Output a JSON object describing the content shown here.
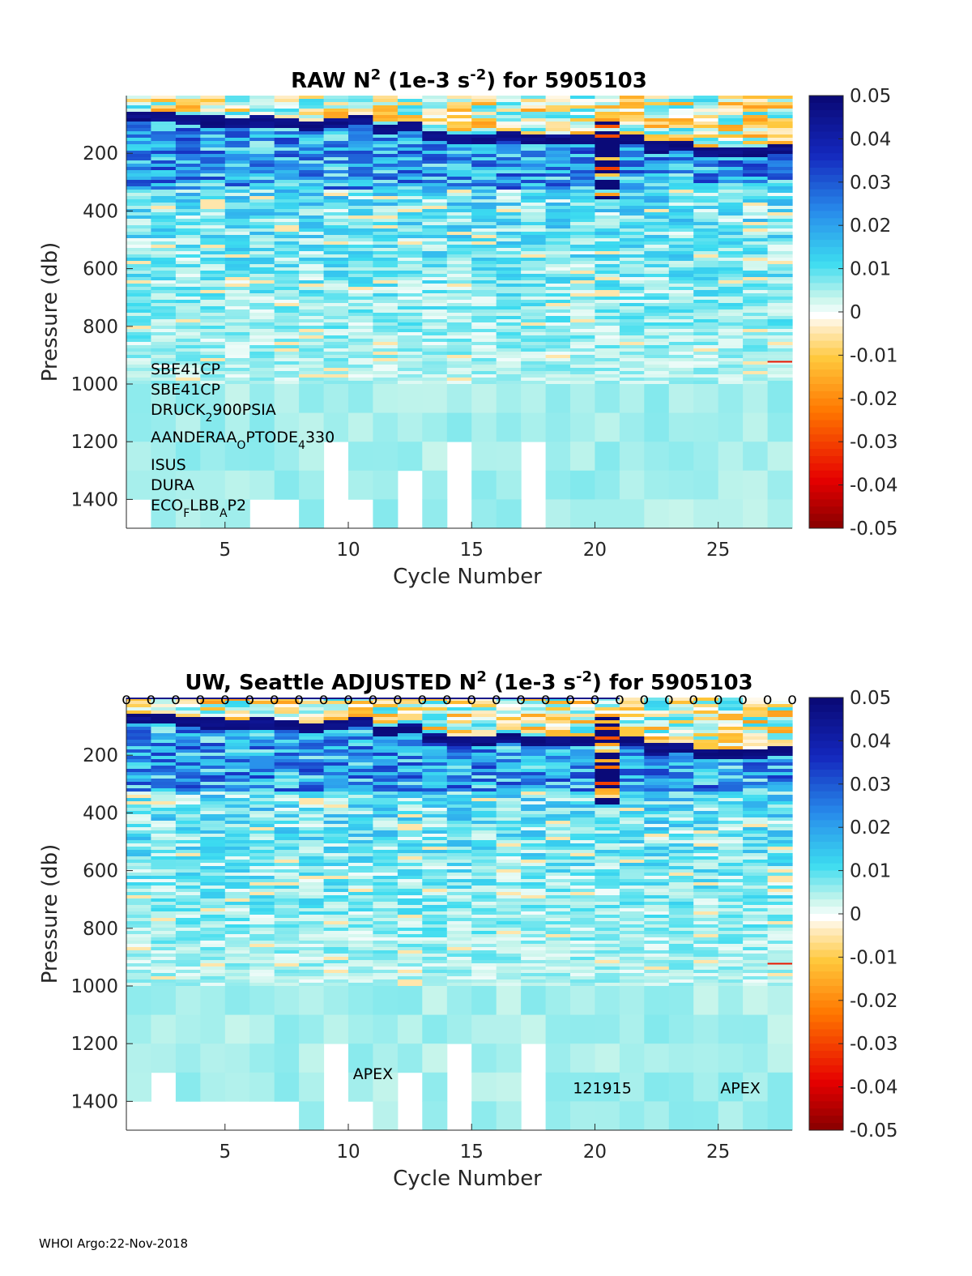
{
  "chart_data": [
    {
      "type": "heatmap",
      "title_main": "RAW N",
      "title_sup": "2",
      "title_unit_pre": " (1e-3 s",
      "title_unit_sup": "-2",
      "title_post": ") for 5905103",
      "xlabel": "Cycle Number",
      "ylabel": "Pressure (db)",
      "xlim": [
        1,
        28
      ],
      "ylim": [
        1500,
        0
      ],
      "xticks": [
        5,
        10,
        15,
        20,
        25
      ],
      "yticks": [
        200,
        400,
        600,
        800,
        1000,
        1200,
        1400
      ],
      "colorbar": {
        "min": -0.05,
        "max": 0.05,
        "ticks": [
          "0.05",
          "0.04",
          "0.03",
          "0.02",
          "0.01",
          "0",
          "-0.01",
          "-0.02",
          "-0.03",
          "-0.04",
          "-0.05"
        ]
      },
      "profile_max_pressure": [
        1400,
        1500,
        1500,
        1500,
        1500,
        1400,
        1400,
        1500,
        1200,
        1400,
        1500,
        1300,
        1500,
        1200,
        1500,
        1500,
        1200,
        1500,
        1500,
        1500,
        1500,
        1500,
        1500,
        1500,
        1500,
        1500,
        1500
      ],
      "pycnocline_pressure": [
        75,
        70,
        88,
        90,
        95,
        92,
        98,
        104,
        100,
        88,
        118,
        110,
        140,
        155,
        150,
        140,
        150,
        155,
        150,
        160,
        150,
        180,
        175,
        195,
        200,
        195,
        185
      ],
      "sensor_notes": [
        {
          "base": "SBE41CP",
          "sub": "",
          "rest": "",
          "sub2": "",
          "rest2": ""
        },
        {
          "base": "SBE41CP",
          "sub": "",
          "rest": "",
          "sub2": "",
          "rest2": ""
        },
        {
          "base": "DRUCK",
          "sub": "2",
          "rest": "900PSIA",
          "sub2": "",
          "rest2": ""
        },
        {
          "base": "AANDERAA",
          "sub": "O",
          "rest": "PTODE",
          "sub2": "4",
          "rest2": "330"
        },
        {
          "base": "ISUS",
          "sub": "",
          "rest": "",
          "sub2": "",
          "rest2": ""
        },
        {
          "base": "DURA",
          "sub": "",
          "rest": "",
          "sub2": "",
          "rest2": ""
        },
        {
          "base": "ECO",
          "sub": "F",
          "rest": "LBB",
          "sub2": "A",
          "rest2": "P2"
        }
      ]
    },
    {
      "type": "heatmap",
      "title_main": "UW, Seattle  ADJUSTED N",
      "title_sup": "2",
      "title_unit_pre": " (1e-3 s",
      "title_unit_sup": "-2",
      "title_post": ") for 5905103",
      "xlabel": "Cycle Number",
      "ylabel": "Pressure (db)",
      "xlim": [
        1,
        28
      ],
      "ylim": [
        1500,
        0
      ],
      "xticks": [
        5,
        10,
        15,
        20,
        25
      ],
      "yticks": [
        200,
        400,
        600,
        800,
        1000,
        1200,
        1400
      ],
      "colorbar": {
        "min": -0.05,
        "max": 0.05,
        "ticks": [
          "0.05",
          "0.04",
          "0.03",
          "0.02",
          "0.01",
          "0",
          "-0.01",
          "-0.02",
          "-0.03",
          "-0.04",
          "-0.05"
        ]
      },
      "profile_max_pressure": [
        1400,
        1300,
        1400,
        1400,
        1400,
        1400,
        1400,
        1500,
        1200,
        1400,
        1500,
        1300,
        1500,
        1200,
        1500,
        1500,
        1200,
        1500,
        1500,
        1500,
        1500,
        1500,
        1500,
        1500,
        1500,
        1500,
        1500
      ],
      "pycnocline_pressure": [
        75,
        70,
        88,
        90,
        95,
        92,
        98,
        104,
        100,
        88,
        118,
        110,
        140,
        155,
        150,
        140,
        150,
        155,
        150,
        160,
        150,
        180,
        175,
        195,
        200,
        195,
        185
      ],
      "qc_marker": "o",
      "qc_marker_cycles": [
        1,
        2,
        3,
        4,
        5,
        6,
        7,
        8,
        9,
        10,
        11,
        12,
        13,
        14,
        15,
        16,
        17,
        18,
        19,
        20,
        21,
        22,
        23,
        24,
        25,
        26,
        27,
        28
      ],
      "annotations": [
        {
          "text": "APEX",
          "x": 11,
          "y": 1300,
          "size": "large"
        },
        {
          "text": "121915",
          "x": 20.3,
          "y": 1350,
          "size": "small"
        },
        {
          "text": "APEX",
          "x": 25.9,
          "y": 1350,
          "size": "small"
        }
      ]
    }
  ],
  "footer": "WHOI Argo:22-Nov-2018"
}
